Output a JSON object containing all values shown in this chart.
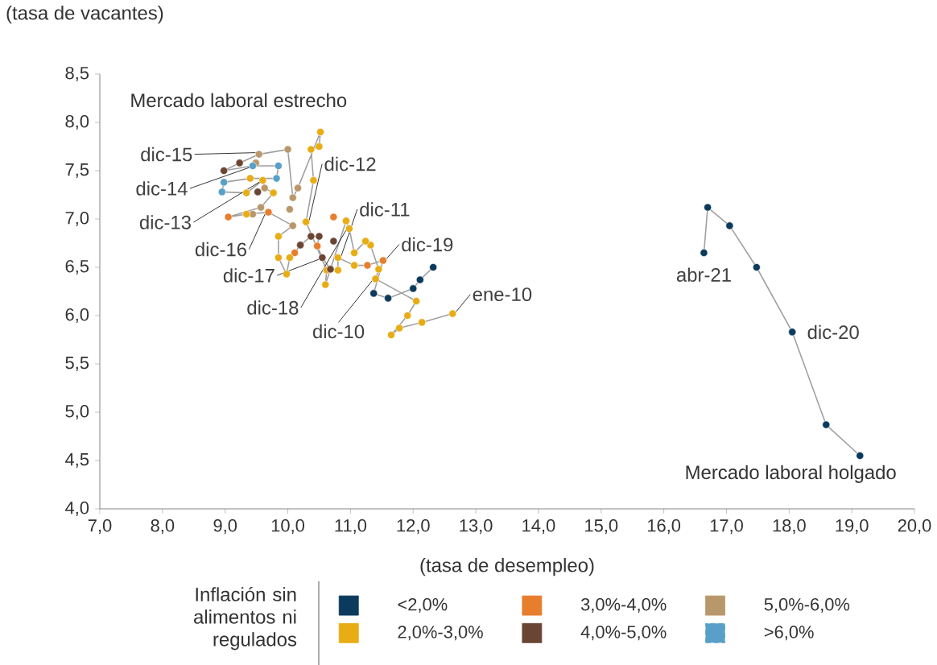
{
  "chart_data": {
    "type": "scatter",
    "ylabel": "(tasa de vacantes)",
    "xlabel": "(tasa de desempleo)",
    "legend_title": "Inflación sin alimentos ni regulados",
    "legend": "bottom",
    "marker": "circle",
    "grid": false,
    "xlim": [
      7,
      20
    ],
    "ylim": [
      4,
      8.5
    ],
    "xticks": [
      {
        "value": 7,
        "label": "7,0"
      },
      {
        "value": 8,
        "label": "8,0"
      },
      {
        "value": 9,
        "label": "9,0"
      },
      {
        "value": 10,
        "label": "10,0"
      },
      {
        "value": 11,
        "label": "11,0"
      },
      {
        "value": 12,
        "label": "12,0"
      },
      {
        "value": 13,
        "label": "13,0"
      },
      {
        "value": 14,
        "label": "14,0"
      },
      {
        "value": 15,
        "label": "15,0"
      },
      {
        "value": 16,
        "label": "16,0"
      },
      {
        "value": 17,
        "label": "17,0"
      },
      {
        "value": 18,
        "label": "18,0"
      },
      {
        "value": 19,
        "label": "19,0"
      },
      {
        "value": 20,
        "label": "20,0"
      }
    ],
    "yticks": [
      {
        "value": 4,
        "label": "4,0"
      },
      {
        "value": 4.5,
        "label": "4,5"
      },
      {
        "value": 5,
        "label": "5,0"
      },
      {
        "value": 5.5,
        "label": "5,5"
      },
      {
        "value": 6,
        "label": "6,0"
      },
      {
        "value": 6.5,
        "label": "6,5"
      },
      {
        "value": 7,
        "label": "7,0"
      },
      {
        "value": 7.5,
        "label": "7,5"
      },
      {
        "value": 8,
        "label": "8,0"
      },
      {
        "value": 8.5,
        "label": "8,5"
      }
    ],
    "series": [
      {
        "type": "line",
        "marker": "none",
        "line_style": "solid",
        "color": "#a0a0a0",
        "x": [
          12.63,
          12.14,
          11.78,
          11.65,
          11.91,
          12.05,
          11.4,
          11.45,
          11.32,
          11.24,
          11.06,
          10.98,
          10.93,
          10.6,
          10.62,
          10.29,
          10.41,
          10.37,
          10.5,
          10.52,
          10.16,
          10.08,
          10.0,
          9.54,
          9.23,
          8.98,
          9.44,
          9.85,
          9.82,
          9.4,
          8.98,
          8.95,
          9.34,
          9.6,
          9.63,
          9.77,
          9.57,
          9.05,
          9.34,
          9.69,
          10.08,
          9.85,
          9.85,
          9.98,
          10.03,
          10.11,
          10.2,
          10.37,
          10.5,
          10.47,
          10.55,
          10.68,
          10.8,
          10.8,
          11.06,
          11.27,
          11.52,
          11.37,
          11.6,
          12.0,
          12.11,
          12.32,
          null,
          19.13,
          18.59,
          18.05,
          17.48,
          17.05,
          16.7,
          16.64
        ],
        "values": [
          6.02,
          5.93,
          5.87,
          5.8,
          6.0,
          6.15,
          6.38,
          6.48,
          6.73,
          6.77,
          6.65,
          6.9,
          6.98,
          6.32,
          6.47,
          6.97,
          7.4,
          7.72,
          7.75,
          7.9,
          7.32,
          7.22,
          7.72,
          7.67,
          7.58,
          7.5,
          7.55,
          7.55,
          7.42,
          7.42,
          7.38,
          7.28,
          7.27,
          7.4,
          7.32,
          7.27,
          7.12,
          7.02,
          7.05,
          7.07,
          6.93,
          6.82,
          6.6,
          6.43,
          6.6,
          6.65,
          6.73,
          6.82,
          6.82,
          6.72,
          6.6,
          6.48,
          6.47,
          6.6,
          6.52,
          6.52,
          6.57,
          6.23,
          6.18,
          6.28,
          6.37,
          6.5,
          null,
          4.55,
          4.87,
          5.83,
          6.5,
          6.93,
          7.12,
          6.65
        ]
      },
      {
        "name": "<2,0%",
        "color": "#0b3a5c",
        "x": [
          11.37,
          11.6,
          12.0,
          12.11,
          12.32,
          19.13,
          18.59,
          18.05,
          17.48,
          17.05,
          16.7,
          16.64
        ],
        "values": [
          6.23,
          6.18,
          6.28,
          6.37,
          6.5,
          4.55,
          4.87,
          5.83,
          6.5,
          6.93,
          7.12,
          6.65
        ]
      },
      {
        "name": "2,0%-3,0%",
        "color": "#e8ac14",
        "x": [
          12.63,
          12.14,
          11.78,
          11.65,
          11.91,
          12.05,
          11.4,
          11.45,
          11.32,
          11.24,
          11.06,
          10.98,
          10.93,
          10.6,
          10.62,
          10.29,
          10.41,
          10.37,
          10.5,
          10.52,
          9.4,
          9.34,
          9.6,
          9.77,
          9.34,
          9.85,
          9.85,
          9.98,
          10.03,
          10.8,
          10.8,
          11.06
        ],
        "values": [
          6.02,
          5.93,
          5.87,
          5.8,
          6.0,
          6.15,
          6.38,
          6.48,
          6.73,
          6.77,
          6.65,
          6.9,
          6.98,
          6.32,
          6.47,
          6.97,
          7.4,
          7.72,
          7.75,
          7.9,
          7.42,
          7.27,
          7.4,
          7.27,
          7.05,
          6.82,
          6.6,
          6.43,
          6.6,
          6.47,
          6.6,
          6.52
        ]
      },
      {
        "name": "3,0%-4,0%",
        "color": "#e67e2d",
        "x": [
          11.52,
          11.27,
          9.69,
          9.05,
          10.11,
          10.47,
          10.73
        ],
        "values": [
          6.57,
          6.52,
          7.07,
          7.02,
          6.65,
          6.72,
          7.02
        ]
      },
      {
        "name": "4,0%-5,0%",
        "color": "#6b4533",
        "x": [
          9.23,
          8.98,
          9.52,
          10.2,
          10.37,
          10.5,
          10.55,
          10.68,
          10.73
        ],
        "values": [
          7.58,
          7.5,
          7.28,
          6.73,
          6.82,
          6.82,
          6.6,
          6.48,
          6.77
        ]
      },
      {
        "name": "5,0%-6,0%",
        "color": "#b8976a",
        "x": [
          10.0,
          9.54,
          9.49,
          9.63,
          9.57,
          9.44,
          10.08,
          10.03,
          10.16,
          10.08
        ],
        "values": [
          7.72,
          7.67,
          7.58,
          7.32,
          7.12,
          7.05,
          7.22,
          7.1,
          7.32,
          6.93
        ]
      },
      {
        "name": ">6,0%",
        "color": "#58a0c8",
        "x": [
          9.44,
          9.85,
          9.82,
          8.98,
          8.95
        ],
        "values": [
          7.55,
          7.55,
          7.42,
          7.38,
          7.28
        ]
      }
    ],
    "annotations": [
      "Mercado laboral estrecho",
      "Mercado laboral holgado",
      {
        "text": "dic-15",
        "x": 9.54,
        "y": 7.67
      },
      {
        "text": "dic-14",
        "x": 9.44,
        "y": 7.55
      },
      {
        "text": "dic-13",
        "x": 9.6,
        "y": 7.4
      },
      {
        "text": "dic-16",
        "x": 9.69,
        "y": 7.07
      },
      {
        "text": "dic-17",
        "x": 10.55,
        "y": 6.6
      },
      {
        "text": "dic-18",
        "x": 10.98,
        "y": 6.9
      },
      {
        "text": "dic-10",
        "x": 11.4,
        "y": 6.38
      },
      {
        "text": "dic-11",
        "x": 10.8,
        "y": 6.6
      },
      {
        "text": "dic-12",
        "x": 10.29,
        "y": 6.97
      },
      {
        "text": "dic-19",
        "x": 11.52,
        "y": 6.57
      },
      {
        "text": "ene-10",
        "x": 12.63,
        "y": 6.02
      },
      {
        "text": "abr-21",
        "x": 16.64,
        "y": 6.65
      },
      {
        "text": "dic-20",
        "x": 18.05,
        "y": 5.83
      }
    ]
  }
}
